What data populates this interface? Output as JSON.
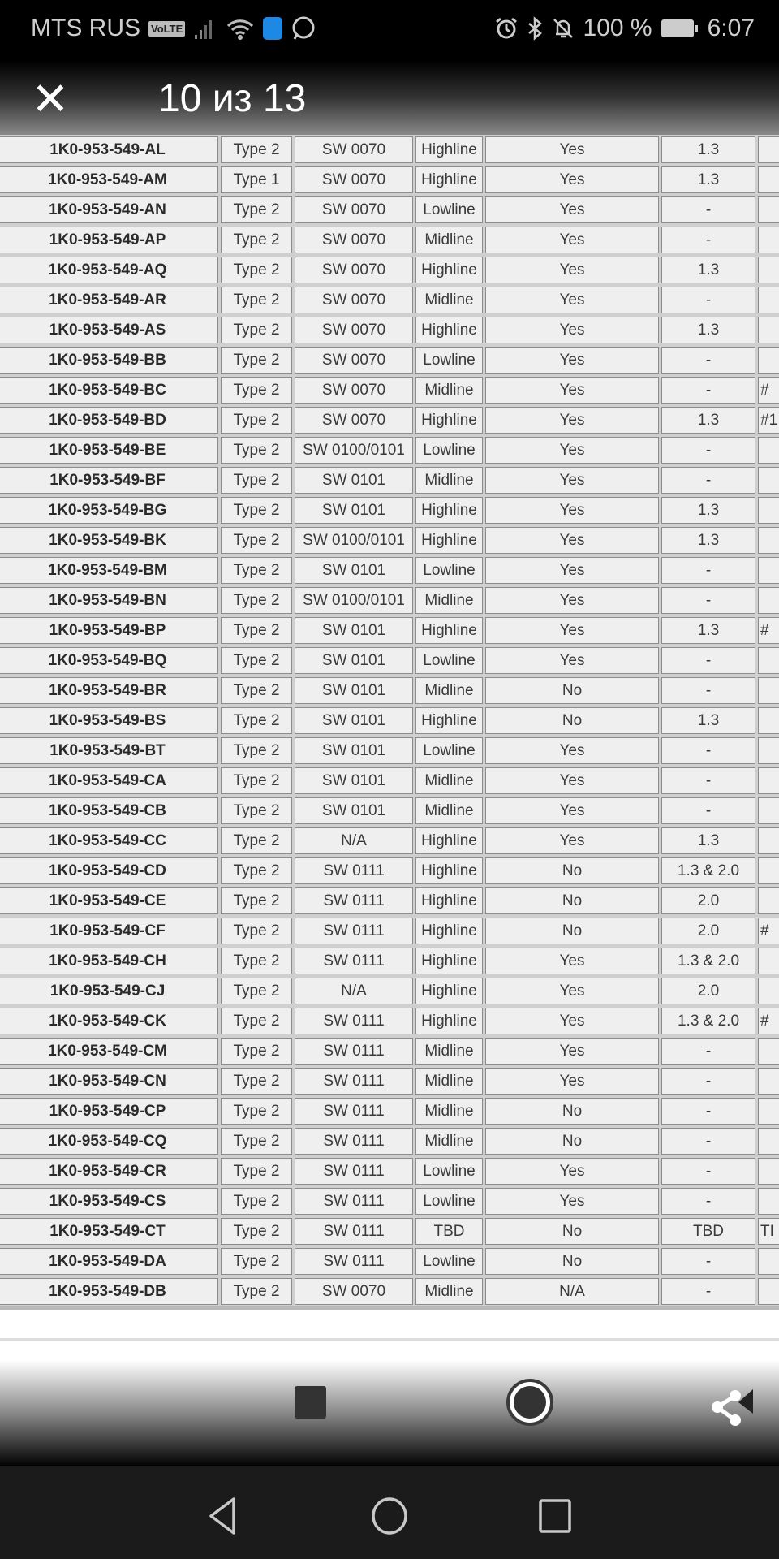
{
  "status_bar": {
    "carrier": "MTS RUS",
    "volte": "VoLTE",
    "battery": "100 %",
    "time": "6:07",
    "icons": [
      "signal-icon",
      "wifi-icon",
      "shield-app-icon",
      "whatsapp-icon",
      "alarm-icon",
      "bluetooth-icon",
      "bell-off-icon",
      "battery-icon"
    ]
  },
  "viewer": {
    "counter": "10 из 13",
    "close_icon": "close-icon"
  },
  "table": {
    "rows": [
      [
        "1K0-953-549-AL",
        "Type 2",
        "SW 0070",
        "Highline",
        "Yes",
        "1.3",
        ""
      ],
      [
        "1K0-953-549-AM",
        "Type 1",
        "SW 0070",
        "Highline",
        "Yes",
        "1.3",
        ""
      ],
      [
        "1K0-953-549-AN",
        "Type 2",
        "SW 0070",
        "Lowline",
        "Yes",
        "-",
        ""
      ],
      [
        "1K0-953-549-AP",
        "Type 2",
        "SW 0070",
        "Midline",
        "Yes",
        "-",
        ""
      ],
      [
        "1K0-953-549-AQ",
        "Type 2",
        "SW 0070",
        "Highline",
        "Yes",
        "1.3",
        ""
      ],
      [
        "1K0-953-549-AR",
        "Type 2",
        "SW 0070",
        "Midline",
        "Yes",
        "-",
        ""
      ],
      [
        "1K0-953-549-AS",
        "Type 2",
        "SW 0070",
        "Highline",
        "Yes",
        "1.3",
        ""
      ],
      [
        "1K0-953-549-BB",
        "Type 2",
        "SW 0070",
        "Lowline",
        "Yes",
        "-",
        ""
      ],
      [
        "1K0-953-549-BC",
        "Type 2",
        "SW 0070",
        "Midline",
        "Yes",
        "-",
        "#"
      ],
      [
        "1K0-953-549-BD",
        "Type 2",
        "SW 0070",
        "Highline",
        "Yes",
        "1.3",
        "#1"
      ],
      [
        "1K0-953-549-BE",
        "Type 2",
        "SW 0100/0101",
        "Lowline",
        "Yes",
        "-",
        ""
      ],
      [
        "1K0-953-549-BF",
        "Type 2",
        "SW 0101",
        "Midline",
        "Yes",
        "-",
        ""
      ],
      [
        "1K0-953-549-BG",
        "Type 2",
        "SW 0101",
        "Highline",
        "Yes",
        "1.3",
        ""
      ],
      [
        "1K0-953-549-BK",
        "Type 2",
        "SW 0100/0101",
        "Highline",
        "Yes",
        "1.3",
        ""
      ],
      [
        "1K0-953-549-BM",
        "Type 2",
        "SW 0101",
        "Lowline",
        "Yes",
        "-",
        ""
      ],
      [
        "1K0-953-549-BN",
        "Type 2",
        "SW 0100/0101",
        "Midline",
        "Yes",
        "-",
        ""
      ],
      [
        "1K0-953-549-BP",
        "Type 2",
        "SW 0101",
        "Highline",
        "Yes",
        "1.3",
        "#"
      ],
      [
        "1K0-953-549-BQ",
        "Type 2",
        "SW 0101",
        "Lowline",
        "Yes",
        "-",
        ""
      ],
      [
        "1K0-953-549-BR",
        "Type 2",
        "SW 0101",
        "Midline",
        "No",
        "-",
        ""
      ],
      [
        "1K0-953-549-BS",
        "Type 2",
        "SW 0101",
        "Highline",
        "No",
        "1.3",
        ""
      ],
      [
        "1K0-953-549-BT",
        "Type 2",
        "SW 0101",
        "Lowline",
        "Yes",
        "-",
        ""
      ],
      [
        "1K0-953-549-CA",
        "Type 2",
        "SW 0101",
        "Midline",
        "Yes",
        "-",
        ""
      ],
      [
        "1K0-953-549-CB",
        "Type 2",
        "SW 0101",
        "Midline",
        "Yes",
        "-",
        ""
      ],
      [
        "1K0-953-549-CC",
        "Type 2",
        "N/A",
        "Highline",
        "Yes",
        "1.3",
        ""
      ],
      [
        "1K0-953-549-CD",
        "Type 2",
        "SW 0111",
        "Highline",
        "No",
        "1.3 & 2.0",
        ""
      ],
      [
        "1K0-953-549-CE",
        "Type 2",
        "SW 0111",
        "Highline",
        "No",
        "2.0",
        ""
      ],
      [
        "1K0-953-549-CF",
        "Type 2",
        "SW 0111",
        "Highline",
        "No",
        "2.0",
        "#"
      ],
      [
        "1K0-953-549-CH",
        "Type 2",
        "SW 0111",
        "Highline",
        "Yes",
        "1.3 & 2.0",
        ""
      ],
      [
        "1K0-953-549-CJ",
        "Type 2",
        "N/A",
        "Highline",
        "Yes",
        "2.0",
        ""
      ],
      [
        "1K0-953-549-CK",
        "Type 2",
        "SW 0111",
        "Highline",
        "Yes",
        "1.3 & 2.0",
        "#"
      ],
      [
        "1K0-953-549-CM",
        "Type 2",
        "SW 0111",
        "Midline",
        "Yes",
        "-",
        ""
      ],
      [
        "1K0-953-549-CN",
        "Type 2",
        "SW 0111",
        "Midline",
        "Yes",
        "-",
        ""
      ],
      [
        "1K0-953-549-CP",
        "Type 2",
        "SW 0111",
        "Midline",
        "No",
        "-",
        ""
      ],
      [
        "1K0-953-549-CQ",
        "Type 2",
        "SW 0111",
        "Midline",
        "No",
        "-",
        ""
      ],
      [
        "1K0-953-549-CR",
        "Type 2",
        "SW 0111",
        "Lowline",
        "Yes",
        "-",
        ""
      ],
      [
        "1K0-953-549-CS",
        "Type 2",
        "SW 0111",
        "Lowline",
        "Yes",
        "-",
        ""
      ],
      [
        "1K0-953-549-CT",
        "Type 2",
        "SW 0111",
        "TBD",
        "No",
        "TBD",
        "TI"
      ],
      [
        "1K0-953-549-DA",
        "Type 2",
        "SW 0111",
        "Lowline",
        "No",
        "-",
        ""
      ],
      [
        "1K0-953-549-DB",
        "Type 2",
        "SW 0070",
        "Midline",
        "N/A",
        "-",
        ""
      ]
    ]
  },
  "toolbar": {
    "icons": [
      "stop-icon",
      "record-icon",
      "share-icon"
    ]
  },
  "nav_bar": {
    "icons": [
      "back-icon",
      "home-icon",
      "recents-icon"
    ]
  }
}
